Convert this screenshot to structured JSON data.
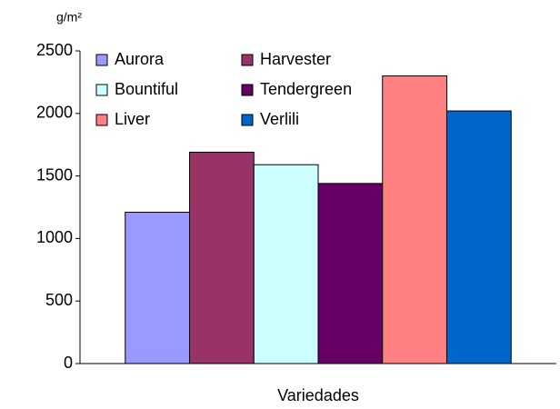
{
  "chart_data": {
    "type": "bar",
    "y_label": "g/m²",
    "x_label": "Variedades",
    "categories": [
      null
    ],
    "series": [
      {
        "name": "Aurora",
        "color": "#9999ff",
        "values": [
          1210
        ]
      },
      {
        "name": "Harvester",
        "color": "#993366",
        "values": [
          1690
        ]
      },
      {
        "name": "Bountiful",
        "color": "#ccffff",
        "values": [
          1590
        ]
      },
      {
        "name": "Tendergreen",
        "color": "#660066",
        "values": [
          1440
        ]
      },
      {
        "name": "Liver",
        "color": "#ff8080",
        "values": [
          2300
        ]
      },
      {
        "name": "Verlili",
        "color": "#0066cc",
        "values": [
          2020
        ]
      }
    ],
    "ylim": [
      0,
      2500
    ],
    "yticks": [
      0,
      500,
      1000,
      1500,
      2000,
      2500
    ],
    "grid": false,
    "legend": "top-left"
  }
}
